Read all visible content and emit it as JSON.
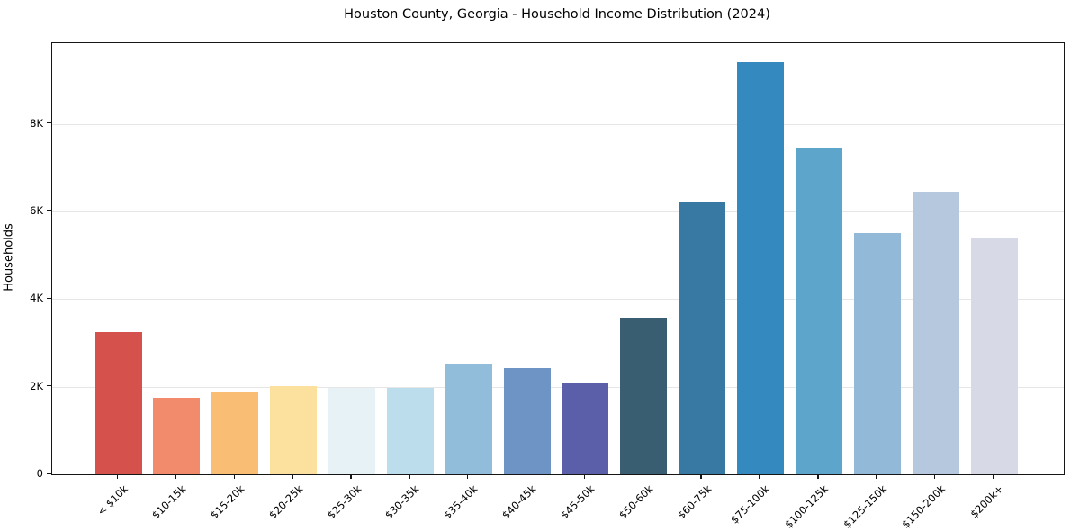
{
  "chart_data": {
    "type": "bar",
    "title": "Houston County, Georgia - Household Income Distribution (2024)",
    "xlabel": "",
    "ylabel": "Households",
    "categories": [
      "< $10k",
      "$10-15k",
      "$15-20k",
      "$20-25k",
      "$25-30k",
      "$30-35k",
      "$35-40k",
      "$40-45k",
      "$45-50k",
      "$50-60k",
      "$60-75k",
      "$75-100k",
      "$100-125k",
      "$125-150k",
      "$150-200k",
      "$200k+"
    ],
    "values": [
      3240,
      1740,
      1870,
      2010,
      1970,
      1980,
      2520,
      2430,
      2070,
      3570,
      6220,
      9400,
      7460,
      5500,
      6450,
      5390
    ],
    "bar_colors": [
      "#d5524c",
      "#f28a6c",
      "#fabd74",
      "#fbe19d",
      "#e6f2f6",
      "#bcdeec",
      "#91bcda",
      "#6e93c5",
      "#5b5ea9",
      "#395e71",
      "#3879a3",
      "#3489bf",
      "#5ea5cb",
      "#93b9d8",
      "#b5c8de",
      "#d7dae6"
    ],
    "ylim": [
      0,
      9840
    ],
    "yticks": [
      {
        "value": 0,
        "label": "0"
      },
      {
        "value": 2000,
        "label": "2K"
      },
      {
        "value": 4000,
        "label": "4K"
      },
      {
        "value": 6000,
        "label": "6K"
      },
      {
        "value": 8000,
        "label": "8K"
      }
    ],
    "grid": "horizontal",
    "legend": "none",
    "colors": {
      "background": "#ffffff",
      "gridline": "#e6e6e6",
      "spine": "#151515",
      "text": "#000000"
    }
  }
}
